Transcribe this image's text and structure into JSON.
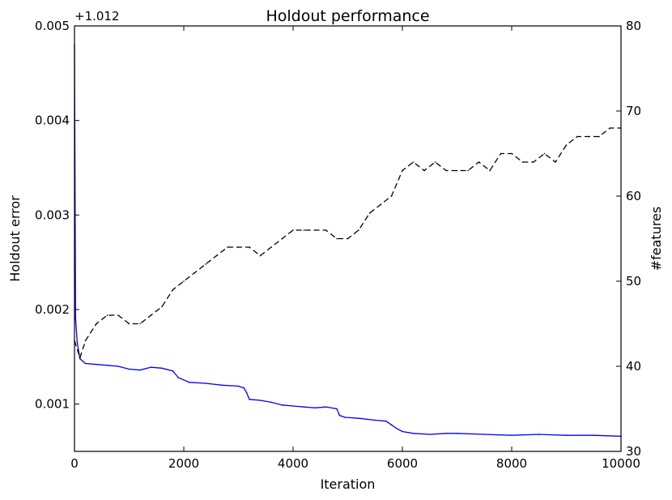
{
  "chart_data": {
    "type": "line",
    "title": "Holdout performance",
    "xlabel": "Iteration",
    "ylabel": "Holdout error",
    "y2label": "#features",
    "y_offset_label": "+1.012",
    "xlim": [
      0,
      10000
    ],
    "ylim": [
      0.0005,
      0.005
    ],
    "y2lim": [
      30,
      80
    ],
    "x_ticks": [
      "0",
      "2000",
      "4000",
      "6000",
      "8000",
      "10000"
    ],
    "y_ticks": [
      "0.001",
      "0.002",
      "0.003",
      "0.004",
      "0.005"
    ],
    "y2_ticks": [
      "30",
      "40",
      "50",
      "60",
      "70",
      "80"
    ],
    "grid": false,
    "series": [
      {
        "axis": "left",
        "style": "solid",
        "color": "#0000ff",
        "x": [
          0,
          20,
          50,
          100,
          200,
          400,
          600,
          800,
          1000,
          1200,
          1400,
          1600,
          1800,
          1900,
          2100,
          2400,
          2700,
          3000,
          3100,
          3150,
          3200,
          3400,
          3600,
          3800,
          4000,
          4200,
          4400,
          4600,
          4800,
          4850,
          4950,
          5200,
          5500,
          5700,
          5800,
          5900,
          6000,
          6200,
          6500,
          6800,
          7000,
          7500,
          8000,
          8500,
          9000,
          9500,
          10000
        ],
        "values": [
          0.0048,
          0.0019,
          0.00165,
          0.00148,
          0.00143,
          0.00142,
          0.00141,
          0.0014,
          0.00137,
          0.00136,
          0.00139,
          0.00138,
          0.00135,
          0.00128,
          0.00123,
          0.00122,
          0.0012,
          0.00119,
          0.00117,
          0.00112,
          0.00105,
          0.00104,
          0.00102,
          0.00099,
          0.00098,
          0.00097,
          0.00096,
          0.00097,
          0.00095,
          0.00088,
          0.00086,
          0.00085,
          0.00083,
          0.00082,
          0.00078,
          0.00074,
          0.00071,
          0.00069,
          0.00068,
          0.00069,
          0.00069,
          0.00068,
          0.00067,
          0.00068,
          0.00067,
          0.00067,
          0.00066
        ]
      },
      {
        "axis": "right",
        "style": "dashed",
        "color": "#000000",
        "x": [
          0,
          100,
          200,
          400,
          600,
          800,
          1000,
          1200,
          1400,
          1600,
          1800,
          2000,
          2200,
          2400,
          2600,
          2800,
          3000,
          3200,
          3400,
          3600,
          3800,
          4000,
          4200,
          4400,
          4600,
          4800,
          5000,
          5200,
          5400,
          5600,
          5800,
          6000,
          6200,
          6400,
          6600,
          6800,
          7000,
          7200,
          7400,
          7600,
          7800,
          8000,
          8200,
          8400,
          8600,
          8800,
          9000,
          9200,
          9400,
          9600,
          9800,
          10000
        ],
        "values": [
          43,
          41,
          43,
          45,
          46,
          46,
          45,
          45,
          46,
          47,
          49,
          50,
          51,
          52,
          53,
          54,
          54,
          54,
          53,
          54,
          55,
          56,
          56,
          56,
          56,
          55,
          55,
          56,
          58,
          59,
          60,
          63,
          64,
          63,
          64,
          63,
          63,
          63,
          64,
          63,
          65,
          65,
          64,
          64,
          65,
          64,
          66,
          67,
          67,
          67,
          68,
          68
        ]
      }
    ]
  }
}
